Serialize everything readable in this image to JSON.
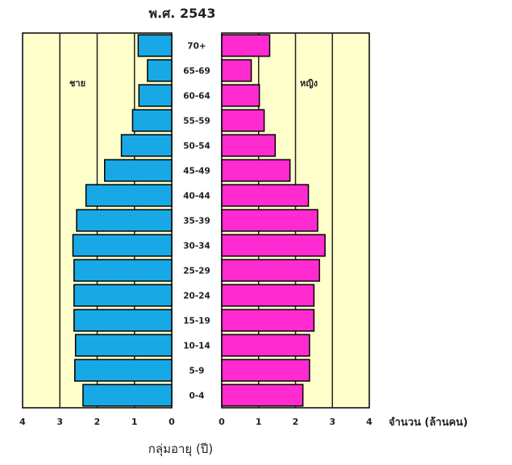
{
  "chart_data": {
    "type": "bar",
    "title": "พ.ศ. 2543",
    "xlabel": "กลุ่มอายุ (ปี)",
    "unit_label": "จำนวน (ล้านคน)",
    "categories": [
      "70+",
      "65-69",
      "60-64",
      "55-59",
      "50-54",
      "45-49",
      "40-44",
      "35-39",
      "30-34",
      "25-29",
      "20-24",
      "15-19",
      "10-14",
      "5-9",
      "0-4"
    ],
    "series": [
      {
        "name": "ชาย",
        "side": "left",
        "color": "#18a8e6",
        "values": [
          0.9,
          0.65,
          0.88,
          1.05,
          1.35,
          1.8,
          2.3,
          2.55,
          2.65,
          2.62,
          2.62,
          2.62,
          2.58,
          2.6,
          2.38
        ]
      },
      {
        "name": "หญิง",
        "side": "right",
        "color": "#ff2bd0",
        "values": [
          1.3,
          0.8,
          1.02,
          1.15,
          1.45,
          1.85,
          2.35,
          2.6,
          2.8,
          2.65,
          2.5,
          2.5,
          2.38,
          2.38,
          2.2
        ]
      }
    ],
    "xlim": [
      0,
      4
    ],
    "ticks": [
      "4",
      "3",
      "2",
      "1",
      "0",
      "0",
      "1",
      "2",
      "3",
      "4"
    ],
    "background_color": "#ffffcc",
    "gridlines": [
      1,
      2,
      3
    ]
  }
}
